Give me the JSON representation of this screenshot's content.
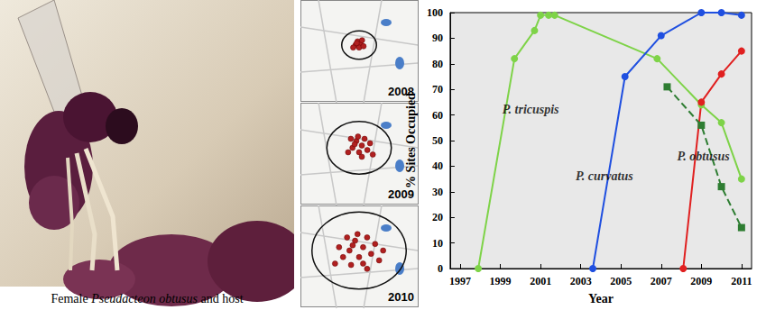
{
  "photo": {
    "caption": "Female Pseudacteon obtusus and host",
    "italic": "Pseudacteon obtusus"
  },
  "maps": {
    "years": [
      "2008",
      "2009",
      "2010"
    ]
  },
  "chart_data": {
    "type": "line",
    "x_label": "Year",
    "y_label": "% Sites Occupied",
    "xlim": [
      1996.5,
      2011.5
    ],
    "xticks": [
      1997,
      1999,
      2001,
      2003,
      2005,
      2007,
      2009,
      2011
    ],
    "ylim": [
      0,
      100
    ],
    "yticks": [
      0,
      10,
      20,
      30,
      40,
      50,
      60,
      70,
      80,
      90,
      100
    ],
    "grid": false,
    "series": [
      {
        "color": "#7ed348",
        "marker": "circle",
        "line_style": "solid",
        "x": [
          1997.9,
          1999.7,
          2000.7,
          2001.0,
          2001.4,
          2001.7,
          2006.8,
          2009,
          2010,
          2011
        ],
        "values": [
          0,
          82,
          93,
          99,
          99,
          99,
          82,
          64,
          57,
          35
        ]
      },
      {
        "color": "#1f4fe0",
        "marker": "circle",
        "line_style": "solid",
        "x": [
          2003.6,
          2005.2,
          2007,
          2009,
          2010,
          2011
        ],
        "values": [
          0,
          75,
          91,
          100,
          100,
          99
        ]
      },
      {
        "color": "#e02020",
        "marker": "circle",
        "line_style": "solid",
        "x": [
          2008.1,
          2009,
          2010,
          2011
        ],
        "values": [
          0,
          65,
          76,
          85
        ]
      },
      {
        "color": "#2e7d32",
        "marker": "square",
        "line_style": "dashed",
        "x": [
          2007.3,
          2009,
          2010,
          2011
        ],
        "values": [
          71,
          56,
          32,
          16
        ]
      }
    ],
    "annotations": [
      {
        "text": "P. tricuspis",
        "x": 1999.1,
        "y": 62
      },
      {
        "text": "P. curvatus",
        "x": 2002.75,
        "y": 36
      },
      {
        "text": "P. obtusus",
        "x": 2007.8,
        "y": 44
      }
    ]
  }
}
